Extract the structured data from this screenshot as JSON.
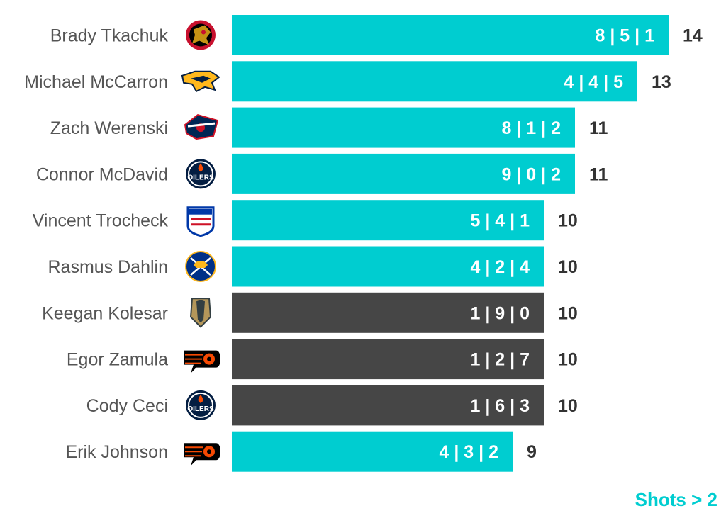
{
  "footnote": "Shots > 2",
  "colors": {
    "highlight": "#00cdd0",
    "dark": "#464646"
  },
  "chart_data": {
    "type": "bar",
    "orientation": "horizontal",
    "xlim": [
      0,
      14
    ],
    "grid": false,
    "categories": [
      "Brady Tkachuk",
      "Michael McCarron",
      "Zach Werenski",
      "Connor McDavid",
      "Vincent Trocheck",
      "Rasmus Dahlin",
      "Keegan Kolesar",
      "Egor Zamula",
      "Cody Ceci",
      "Erik Johnson"
    ],
    "values": [
      14,
      13,
      11,
      11,
      10,
      10,
      10,
      10,
      10,
      9
    ],
    "breakdown_labels": [
      "8 | 5 | 1",
      "4 | 4 | 5",
      "8 | 1 | 2",
      "9 | 0 | 2",
      "5 | 4 | 1",
      "4 | 2 | 4",
      "1 | 9 | 0",
      "1 | 2 | 7",
      "1 | 6 | 3",
      "4 | 3 | 2"
    ],
    "bar_color": [
      "highlight",
      "highlight",
      "highlight",
      "highlight",
      "highlight",
      "highlight",
      "dark",
      "dark",
      "dark",
      "highlight"
    ],
    "team_icons": [
      "senators-logo-icon",
      "predators-logo-icon",
      "blue-jackets-logo-icon",
      "oilers-logo-icon",
      "rangers-logo-icon",
      "sabres-logo-icon",
      "golden-knights-logo-icon",
      "flyers-logo-icon",
      "oilers-logo-icon",
      "flyers-logo-icon"
    ]
  }
}
